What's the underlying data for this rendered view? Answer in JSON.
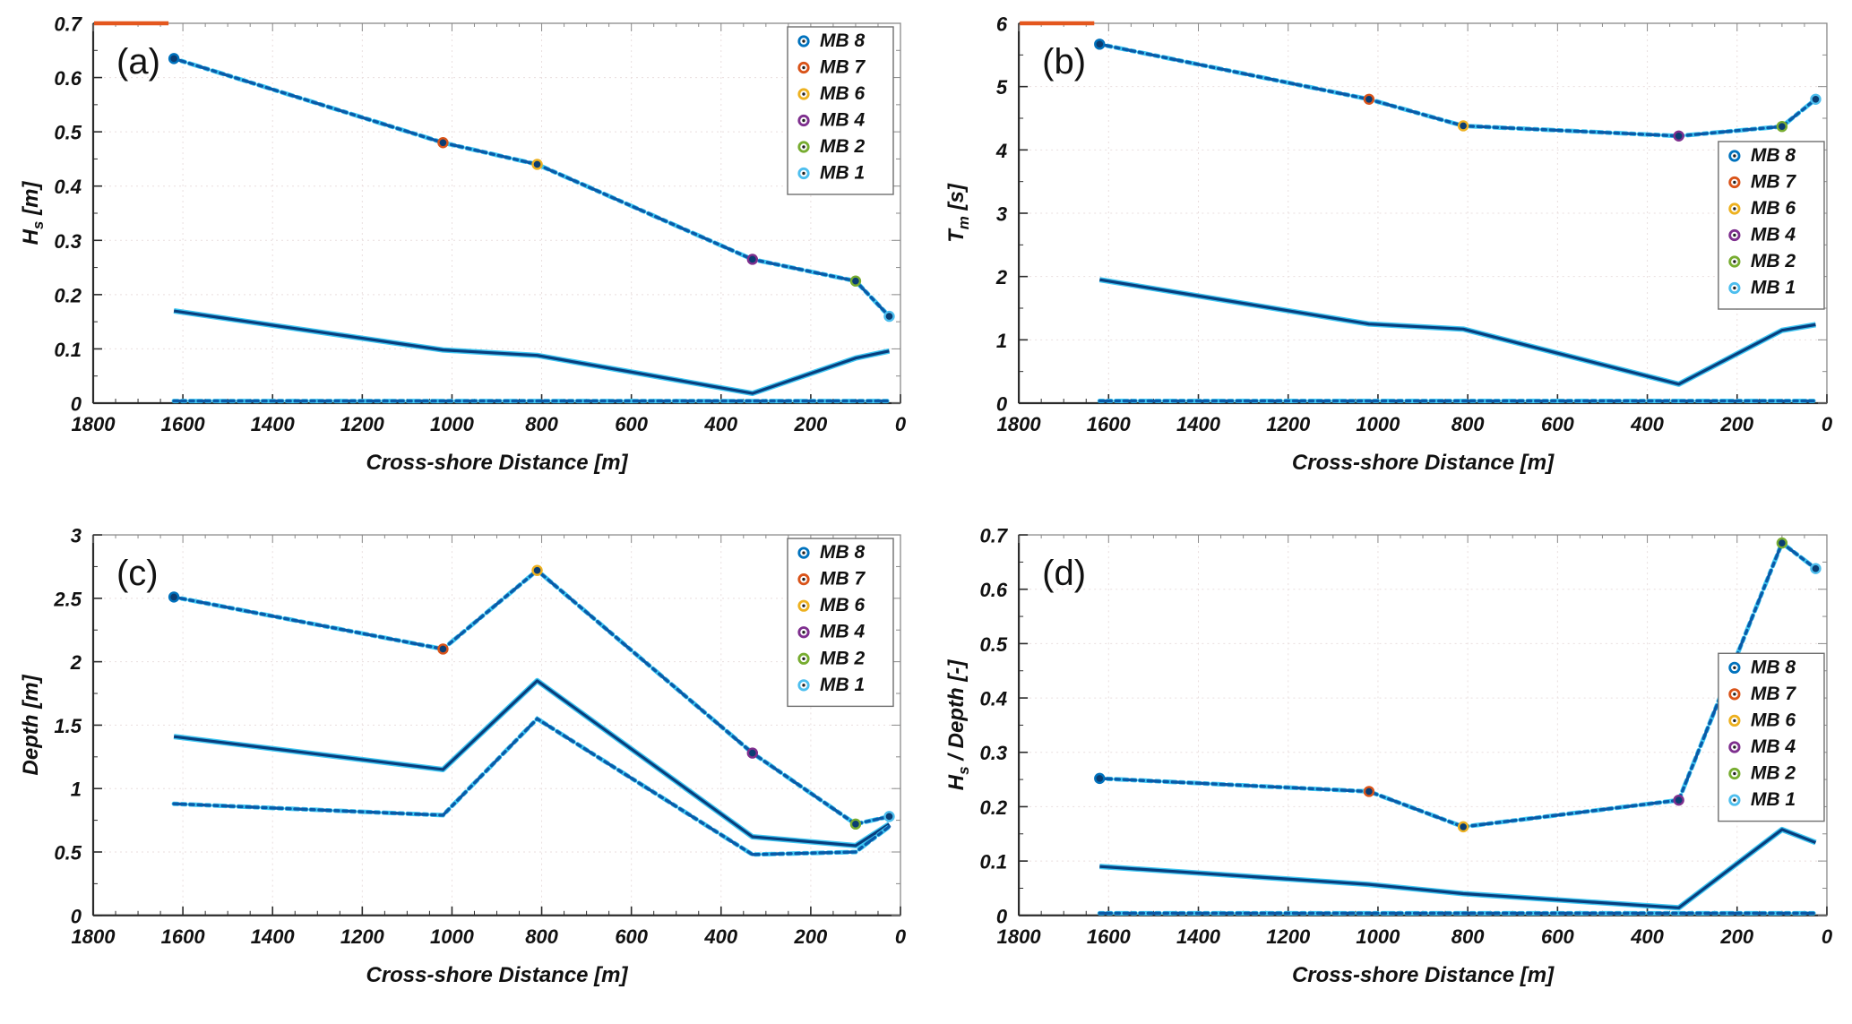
{
  "figure": {
    "background": "#ffffff"
  },
  "colors": {
    "line_halo": "#3EC6F2",
    "dashdot_core": "#0A5AA8",
    "solid_core": "#083E7E",
    "offscale": "#E4571E",
    "grid": "#E9DEDE",
    "axis_dark": "#2B2B2B",
    "axis_light": "#8A8A8A",
    "marker_fill": "#0A3D73",
    "legend_border": "#6E6E6E"
  },
  "legend": {
    "entries": [
      {
        "label": "MB 8",
        "color": "#0072BD"
      },
      {
        "label": "MB 7",
        "color": "#D95319"
      },
      {
        "label": "MB 6",
        "color": "#EDB120"
      },
      {
        "label": "MB 4",
        "color": "#7E2F8E"
      },
      {
        "label": "MB 2",
        "color": "#77AC30"
      },
      {
        "label": "MB 1",
        "color": "#4DBEEE"
      }
    ]
  },
  "station_marker_colors": {
    "1620": "#0072BD",
    "1020": "#D95319",
    "810": "#EDB120",
    "330": "#7E2F8E",
    "100": "#77AC30",
    "25": "#4DBEEE"
  },
  "chart_data": [
    {
      "id": "a",
      "type": "line",
      "panel_label": "(a)",
      "xlabel": "Cross-shore Distance [m]",
      "ylabel_parts": [
        {
          "t": "H"
        },
        {
          "t": "s",
          "sub": true
        },
        {
          "t": " [m]"
        }
      ],
      "xlim": [
        1800,
        0
      ],
      "x_reversed": true,
      "grid": true,
      "legend_pos": "top-right",
      "xticks": [
        1800,
        1600,
        1400,
        1200,
        1000,
        800,
        600,
        400,
        200,
        0
      ],
      "xtick_labels": [
        "1800",
        "1600",
        "1400",
        "1200",
        "1000",
        "800",
        "600",
        "400",
        "200",
        "0"
      ],
      "ylim": [
        0,
        0.7
      ],
      "yticks": [
        0,
        0.1,
        0.2,
        0.3,
        0.4,
        0.5,
        0.6,
        0.7
      ],
      "ytick_labels": [
        "0",
        "0.1",
        "0.2",
        "0.3",
        "0.4",
        "0.5",
        "0.6",
        "0.7"
      ],
      "offscale_segment": {
        "x": [
          1800,
          1632
        ],
        "y": 0.7
      },
      "series": [
        {
          "name": "mb-dashdot",
          "style": "dashdot",
          "markers": true,
          "x": [
            1620,
            1020,
            810,
            330,
            100,
            25
          ],
          "y": [
            0.635,
            0.48,
            0.44,
            0.265,
            0.225,
            0.16
          ]
        },
        {
          "name": "solid",
          "style": "solid",
          "markers": false,
          "x": [
            1620,
            1020,
            810,
            330,
            100,
            25
          ],
          "y": [
            0.17,
            0.098,
            0.088,
            0.018,
            0.083,
            0.096
          ]
        },
        {
          "name": "zero-dashdot",
          "style": "dashdot",
          "markers": false,
          "x": [
            1620,
            25
          ],
          "y": [
            0.004,
            0.004
          ]
        }
      ]
    },
    {
      "id": "b",
      "type": "line",
      "panel_label": "(b)",
      "xlabel": "Cross-shore Distance [m]",
      "ylabel_parts": [
        {
          "t": "T"
        },
        {
          "t": "m",
          "sub": true
        },
        {
          "t": " [s]"
        }
      ],
      "xlim": [
        1800,
        0
      ],
      "x_reversed": true,
      "grid": true,
      "legend_pos": "right-middle",
      "xticks": [
        1800,
        1600,
        1400,
        1200,
        1000,
        800,
        600,
        400,
        200,
        0
      ],
      "xtick_labels": [
        "1800",
        "1600",
        "1400",
        "1200",
        "1000",
        "800",
        "600",
        "400",
        "200",
        "0"
      ],
      "ylim": [
        0,
        6
      ],
      "yticks": [
        0,
        1,
        2,
        3,
        4,
        5,
        6
      ],
      "ytick_labels": [
        "0",
        "1",
        "2",
        "3",
        "4",
        "5",
        "6"
      ],
      "offscale_segment": {
        "x": [
          1800,
          1632
        ],
        "y": 6
      },
      "series": [
        {
          "name": "mb-dashdot",
          "style": "dashdot",
          "markers": true,
          "x": [
            1620,
            1020,
            810,
            330,
            100,
            25
          ],
          "y": [
            5.67,
            4.8,
            4.38,
            4.22,
            4.37,
            4.8
          ]
        },
        {
          "name": "solid",
          "style": "solid",
          "markers": false,
          "x": [
            1620,
            1020,
            810,
            330,
            100,
            25
          ],
          "y": [
            1.95,
            1.25,
            1.17,
            0.3,
            1.15,
            1.24
          ]
        },
        {
          "name": "zero-dashdot",
          "style": "dashdot",
          "markers": false,
          "x": [
            1620,
            25
          ],
          "y": [
            0.035,
            0.035
          ]
        }
      ]
    },
    {
      "id": "c",
      "type": "line",
      "panel_label": "(c)",
      "xlabel": "Cross-shore Distance [m]",
      "ylabel_parts": [
        {
          "t": "Depth [m]"
        }
      ],
      "xlim": [
        1800,
        0
      ],
      "x_reversed": true,
      "grid": true,
      "legend_pos": "top-right",
      "xticks": [
        1800,
        1600,
        1400,
        1200,
        1000,
        800,
        600,
        400,
        200,
        0
      ],
      "xtick_labels": [
        "1800",
        "1600",
        "1400",
        "1200",
        "1000",
        "800",
        "600",
        "400",
        "200",
        "0"
      ],
      "ylim": [
        0,
        3
      ],
      "yticks": [
        0,
        0.5,
        1,
        1.5,
        2,
        2.5,
        3
      ],
      "ytick_labels": [
        "0",
        "0.5",
        "1",
        "1.5",
        "2",
        "2.5",
        "3"
      ],
      "offscale_segment": null,
      "series": [
        {
          "name": "mb-dashdot-upper",
          "style": "dashdot",
          "markers": true,
          "x": [
            1620,
            1020,
            810,
            330,
            100,
            25
          ],
          "y": [
            2.51,
            2.1,
            2.72,
            1.28,
            0.72,
            0.78
          ]
        },
        {
          "name": "solid",
          "style": "solid",
          "markers": false,
          "x": [
            1620,
            1020,
            810,
            330,
            100,
            25
          ],
          "y": [
            1.41,
            1.15,
            1.85,
            0.62,
            0.55,
            0.72
          ]
        },
        {
          "name": "dashdot-lower",
          "style": "dashdot",
          "markers": false,
          "x": [
            1620,
            1020,
            810,
            330,
            100,
            25
          ],
          "y": [
            0.88,
            0.79,
            1.55,
            0.48,
            0.5,
            0.7
          ]
        }
      ]
    },
    {
      "id": "d",
      "type": "line",
      "panel_label": "(d)",
      "xlabel": "Cross-shore Distance [m]",
      "ylabel_parts": [
        {
          "t": "H"
        },
        {
          "t": "s",
          "sub": true
        },
        {
          "t": " / Depth [-]"
        }
      ],
      "xlim": [
        1800,
        0
      ],
      "x_reversed": true,
      "grid": true,
      "legend_pos": "right-middle",
      "xticks": [
        1800,
        1600,
        1400,
        1200,
        1000,
        800,
        600,
        400,
        200,
        0
      ],
      "xtick_labels": [
        "1800",
        "1600",
        "1400",
        "1200",
        "1000",
        "800",
        "600",
        "400",
        "200",
        "0"
      ],
      "ylim": [
        0,
        0.7
      ],
      "yticks": [
        0,
        0.1,
        0.2,
        0.3,
        0.4,
        0.5,
        0.6,
        0.7
      ],
      "ytick_labels": [
        "0",
        "0.1",
        "0.2",
        "0.3",
        "0.4",
        "0.5",
        "0.6",
        "0.7"
      ],
      "offscale_segment": null,
      "series": [
        {
          "name": "mb-dashdot",
          "style": "dashdot",
          "markers": true,
          "x": [
            1620,
            1020,
            810,
            330,
            100,
            25
          ],
          "y": [
            0.252,
            0.228,
            0.163,
            0.212,
            0.685,
            0.638
          ]
        },
        {
          "name": "solid",
          "style": "solid",
          "markers": false,
          "x": [
            1620,
            1020,
            810,
            330,
            100,
            25
          ],
          "y": [
            0.09,
            0.057,
            0.04,
            0.014,
            0.158,
            0.134
          ]
        },
        {
          "name": "zero-dashdot",
          "style": "dashdot",
          "markers": false,
          "x": [
            1620,
            25
          ],
          "y": [
            0.004,
            0.004
          ]
        }
      ]
    }
  ]
}
